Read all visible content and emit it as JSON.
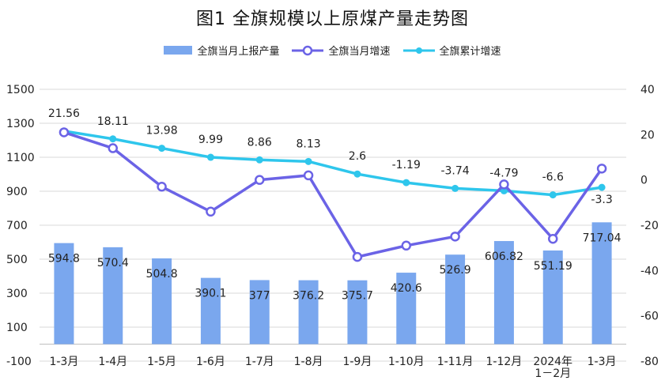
{
  "title": "图1   全旗规模以上原煤产量走势图",
  "legend": {
    "bar": "全旗当月上报产量",
    "line1": "全旗当月增速",
    "line2": "全旗累计增速"
  },
  "colors": {
    "bar": "#7aa7ee",
    "line1": "#6b63e6",
    "line2": "#2ec6ec",
    "grid": "#d9d9d9",
    "axis": "#bfbfbf"
  },
  "chart_data": {
    "type": "bar",
    "categories": [
      "1-3月",
      "1-4月",
      "1-5月",
      "1-6月",
      "1-7月",
      "1-8月",
      "1-9月",
      "1-10月",
      "1-11月",
      "1-12月",
      "2024年\n1－2月",
      "1-3月"
    ],
    "series": [
      {
        "name": "全旗当月上报产量",
        "type": "bar",
        "axis": "left",
        "values": [
          594.8,
          570.4,
          504.8,
          390.1,
          377,
          376.2,
          375.7,
          420.6,
          526.9,
          606.82,
          551.19,
          717.04
        ],
        "labels": [
          "594.8",
          "570.4",
          "504.8",
          "390.1",
          "377",
          "376.2",
          "375.7",
          "420.6",
          "526.9",
          "606.82",
          "551.19",
          "717.04"
        ]
      },
      {
        "name": "全旗当月增速",
        "type": "line",
        "axis": "right",
        "values": [
          21,
          14,
          -3,
          -14,
          0,
          2,
          -34,
          -29,
          -25,
          -2,
          -26,
          5
        ]
      },
      {
        "name": "全旗累计增速",
        "type": "line",
        "axis": "right",
        "values": [
          21.56,
          18.11,
          13.98,
          9.99,
          8.86,
          8.13,
          2.6,
          -1.19,
          -3.74,
          -4.79,
          -6.6,
          -3.3
        ],
        "labels": [
          "21.56",
          "18.11",
          "13.98",
          "9.99",
          "8.86",
          "8.13",
          "2.6",
          "-1.19",
          "-3.74",
          "-4.79",
          "-6.6",
          "-3.3"
        ]
      }
    ],
    "y_left": {
      "min": -100,
      "max": 1500,
      "ticks": [
        -100,
        100,
        300,
        500,
        700,
        900,
        1100,
        1300,
        1500
      ]
    },
    "y_right": {
      "min": -80,
      "max": 40,
      "ticks": [
        -80,
        -60,
        -40,
        -20,
        0,
        20,
        40
      ]
    },
    "grid": true,
    "legend_position": "top"
  }
}
